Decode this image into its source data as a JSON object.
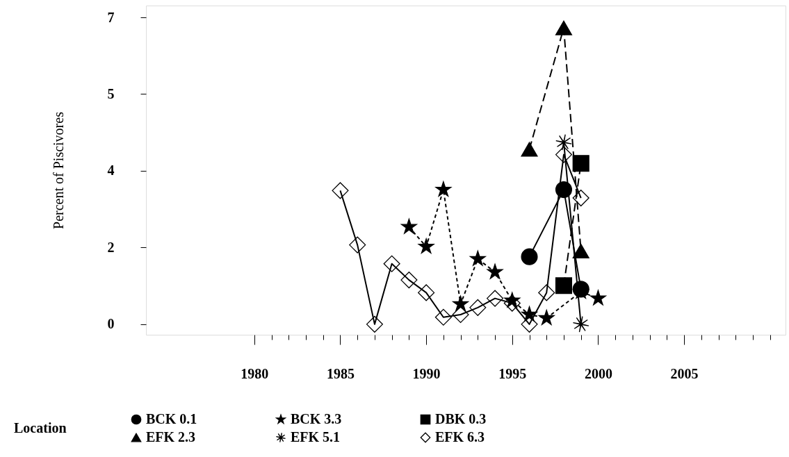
{
  "chart_data": {
    "type": "line",
    "ylabel": "Percent of Piscivores",
    "legend_title": "Location",
    "xlim": [
      1973.7,
      2010.9
    ],
    "ylim": [
      -0.24,
      7.27
    ],
    "xticks": [
      1980,
      {
        "value": 1981,
        "label": null
      },
      {
        "value": 1982,
        "label": null
      },
      {
        "value": 1983,
        "label": null
      },
      {
        "value": 1984,
        "label": null
      },
      1985,
      {
        "value": 1986,
        "label": null
      },
      {
        "value": 1987,
        "label": null
      },
      {
        "value": 1988,
        "label": null
      },
      {
        "value": 1989,
        "label": null
      },
      1990,
      {
        "value": 1991,
        "label": null
      },
      {
        "value": 1992,
        "label": null
      },
      {
        "value": 1993,
        "label": null
      },
      {
        "value": 1994,
        "label": null
      },
      1995,
      {
        "value": 1996,
        "label": null
      },
      {
        "value": 1997,
        "label": null
      },
      {
        "value": 1998,
        "label": null
      },
      {
        "value": 1999,
        "label": null
      },
      2000,
      {
        "value": 2001,
        "label": null
      },
      {
        "value": 2002,
        "label": null
      },
      {
        "value": 2003,
        "label": null
      },
      {
        "value": 2004,
        "label": null
      },
      2005,
      {
        "value": 2006,
        "label": null
      },
      {
        "value": 2007,
        "label": null
      },
      {
        "value": 2008,
        "label": null
      },
      {
        "value": 2009,
        "label": null
      },
      {
        "value": 2010,
        "label": null
      }
    ],
    "yticks": [
      0,
      {
        "value": 1.75,
        "label": "2"
      },
      {
        "value": 3.5,
        "label": "4"
      },
      {
        "value": 5.25,
        "label": "5"
      },
      7
    ],
    "grid": false,
    "legend": "bottom",
    "series": [
      {
        "name": "BCK 0.1",
        "color": "#000000",
        "marker": "circle",
        "line_style": "solid",
        "x": [
          1996,
          1998,
          1999
        ],
        "values": [
          1.54,
          3.07,
          0.8
        ]
      },
      {
        "name": "BCK 3.3",
        "color": "#000000",
        "marker": "star",
        "line_style": "dotted",
        "x": [
          1989,
          1990,
          1991,
          1992,
          1993,
          1994,
          1995,
          1996,
          1997,
          1999,
          2000
        ],
        "values": [
          2.22,
          1.77,
          3.07,
          0.46,
          1.49,
          1.19,
          0.54,
          0.22,
          0.14,
          0.74,
          0.59
        ]
      },
      {
        "name": "DBK 0.3",
        "color": "#000000",
        "marker": "square",
        "line_style": "dashed",
        "x": [
          1998,
          1999
        ],
        "values": [
          0.88,
          3.67
        ]
      },
      {
        "name": "EFK 2.3",
        "color": "#000000",
        "marker": "triangle",
        "line_style": "dashed",
        "x": [
          1996,
          1998,
          1999
        ],
        "values": [
          3.99,
          6.76,
          1.67
        ]
      },
      {
        "name": "EFK 5.1",
        "color": "#000000",
        "marker": "cross",
        "line_style": "solid",
        "x": [
          1998,
          1999
        ],
        "values": [
          4.15,
          0.0
        ]
      },
      {
        "name": "EFK 6.3",
        "color": "#000000",
        "marker": "diamond",
        "line_style": "solid",
        "x": [
          1985,
          1986,
          1987,
          1988,
          1989,
          1990,
          1991,
          1992,
          1993,
          1994,
          1995,
          1996,
          1997,
          1998,
          1999
        ],
        "values": [
          3.05,
          1.81,
          0.0,
          1.38,
          1.01,
          0.72,
          0.16,
          0.22,
          0.38,
          0.59,
          0.48,
          0.0,
          0.72,
          3.87,
          2.88
        ]
      }
    ]
  }
}
